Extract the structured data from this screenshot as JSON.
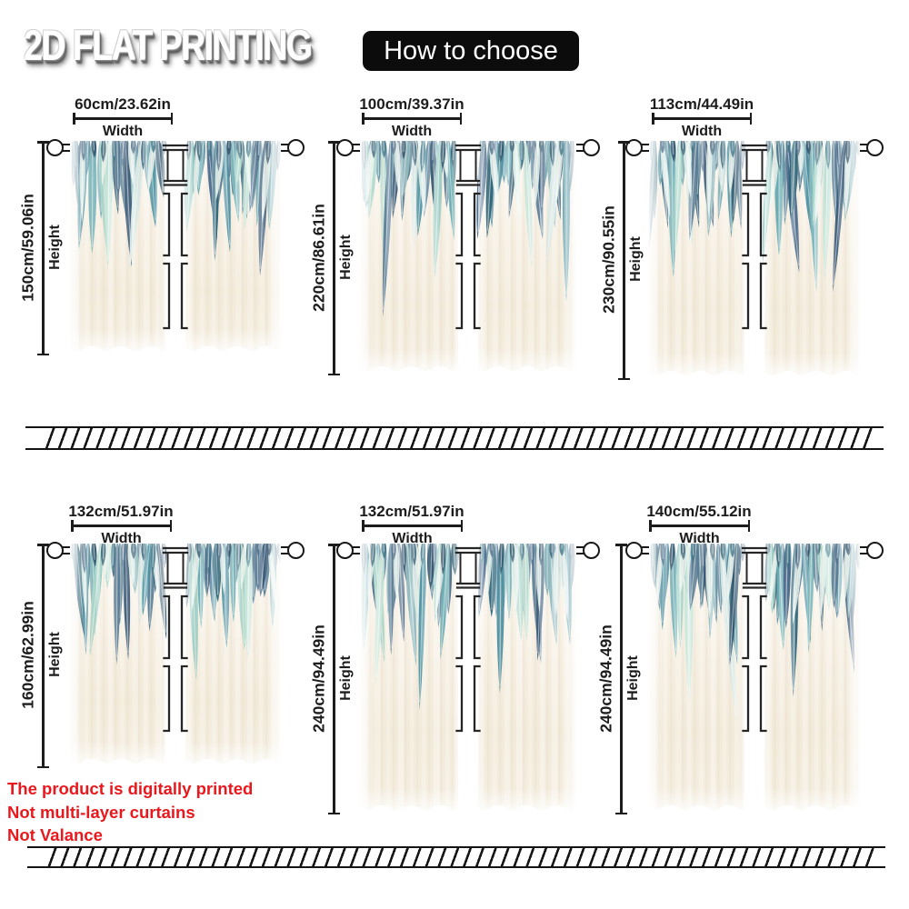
{
  "header": {
    "title": "2D FLAT PRINTING",
    "badge": "How to choose"
  },
  "labels": {
    "width": "Width",
    "height": "Height"
  },
  "panels": [
    {
      "width": "60cm/23.62in",
      "height": "150cm/59.06in"
    },
    {
      "width": "100cm/39.37in",
      "height": "220cm/86.61in"
    },
    {
      "width": "113cm/44.49in",
      "height": "230cm/90.55in"
    },
    {
      "width": "132cm/51.97in",
      "height": "160cm/62.99in"
    },
    {
      "width": "132cm/51.97in",
      "height": "240cm/94.49in"
    },
    {
      "width": "140cm/55.12in",
      "height": "240cm/94.49in"
    }
  ],
  "notes": {
    "lines": [
      "The product is digitally printed",
      "Not multi-layer curtains",
      "Not Valance"
    ],
    "color": "#e9181d"
  },
  "colors": {
    "line": "#1c1c1c",
    "badge_bg": "#0c0c0c",
    "feather_navy": "#33566e",
    "feather_teal": "#4c8fa0",
    "feather_mint": "#a9d6c9",
    "fabric_cream": "#f2ead9"
  }
}
